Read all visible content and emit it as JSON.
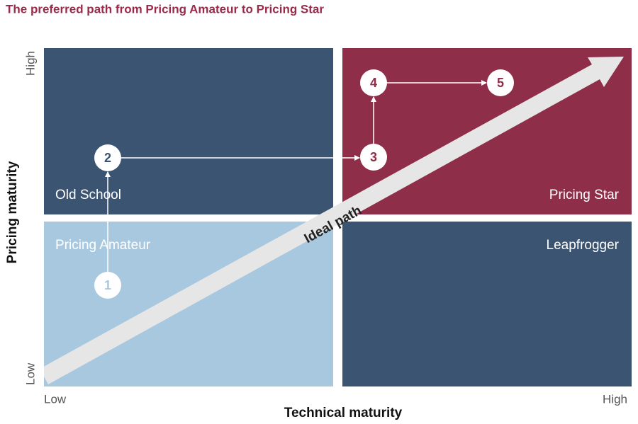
{
  "title": "The preferred path from Pricing Amateur to Pricing Star",
  "y_axis": {
    "label": "Pricing maturity",
    "high": "High",
    "low": "Low"
  },
  "x_axis": {
    "label": "Technical maturity",
    "low": "Low",
    "high": "High"
  },
  "quadrants": {
    "top_left": "Old School",
    "top_right": "Pricing Star",
    "bottom_left": "Pricing Amateur",
    "bottom_right": "Leapfrogger"
  },
  "ideal_path": "Ideal path",
  "nodes": [
    "1",
    "2",
    "3",
    "4",
    "5"
  ]
}
